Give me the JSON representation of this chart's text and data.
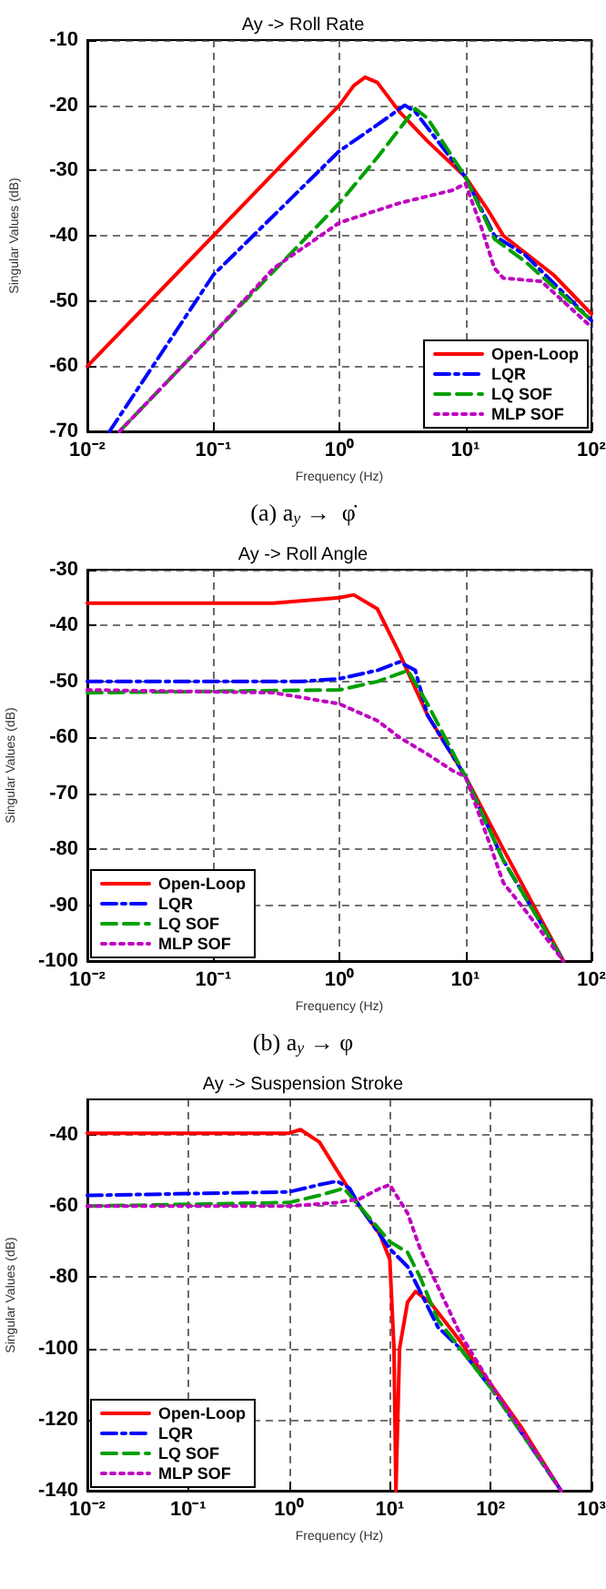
{
  "chart_data": [
    {
      "type": "line",
      "title": "Ay -> Roll Rate",
      "xlabel": "Frequency (Hz)",
      "ylabel": "Singular Values (dB)",
      "annotations": [
        "(a) a$_{y}$ →  φ̇"
      ],
      "log": "x",
      "grid": true,
      "legend": "bottom right",
      "xlim": [
        0.01,
        100
      ],
      "xticks": [
        {
          "value": 0.01,
          "label": "10⁻²"
        },
        {
          "value": 0.1,
          "label": "10⁻¹"
        },
        {
          "value": 1,
          "label": "10⁰"
        },
        {
          "value": 10,
          "label": "10¹"
        },
        {
          "value": 100,
          "label": "10²"
        }
      ],
      "ylim": [
        -70,
        -10
      ],
      "yticks": [
        -70,
        -60,
        -50,
        -40,
        -30,
        -20,
        -10
      ],
      "series": [
        {
          "name": "Open-Loop",
          "color": "#ff0000",
          "line_style": "solid",
          "x": [
            0.01,
            0.1,
            0.5,
            1,
            1.3,
            1.6,
            2,
            3,
            5,
            10,
            15,
            20,
            50,
            100
          ],
          "values": [
            -60,
            -40,
            -26,
            -20,
            -17,
            -15.7,
            -16.5,
            -21,
            -25.5,
            -31,
            -36,
            -40,
            -46,
            -52
          ]
        },
        {
          "name": "LQR",
          "color": "#0000ff",
          "line_style": "dashdot",
          "x": [
            0.015,
            0.1,
            1,
            2,
            3.3,
            4,
            10,
            17,
            30,
            100
          ],
          "values": [
            -70,
            -46,
            -27,
            -23,
            -20,
            -21,
            -31,
            -40,
            -43,
            -53
          ]
        },
        {
          "name": "LQ SOF",
          "color": "#00a000",
          "line_style": "dashed",
          "x": [
            0.018,
            0.1,
            1,
            2,
            4,
            5,
            10,
            17,
            30,
            100
          ],
          "values": [
            -70,
            -55,
            -35,
            -28,
            -20.5,
            -22,
            -31,
            -40.5,
            -44,
            -53
          ]
        },
        {
          "name": "MLP SOF",
          "color": "#c000c0",
          "line_style": "dotted",
          "x": [
            0.018,
            0.1,
            0.3,
            1,
            3,
            8,
            10,
            13,
            17,
            20,
            40,
            100
          ],
          "values": [
            -70,
            -55,
            -45,
            -38,
            -35,
            -33,
            -32,
            -38,
            -45,
            -46.5,
            -47,
            -54
          ]
        }
      ]
    },
    {
      "type": "line",
      "title": "Ay -> Roll Angle",
      "xlabel": "Frequency (Hz)",
      "ylabel": "Singular Values (dB)",
      "annotations": [
        "(b) a$_{y}$ → φ"
      ],
      "log": "x",
      "grid": true,
      "legend": "bottom left",
      "xlim": [
        0.01,
        100
      ],
      "xticks": [
        {
          "value": 0.01,
          "label": "10⁻²"
        },
        {
          "value": 0.1,
          "label": "10⁻¹"
        },
        {
          "value": 1,
          "label": "10⁰"
        },
        {
          "value": 10,
          "label": "10¹"
        },
        {
          "value": 100,
          "label": "10²"
        }
      ],
      "ylim": [
        -100,
        -30
      ],
      "yticks": [
        -100,
        -90,
        -80,
        -70,
        -60,
        -50,
        -40,
        -30
      ],
      "series": [
        {
          "name": "Open-Loop",
          "color": "#ff0000",
          "line_style": "solid",
          "x": [
            0.01,
            0.3,
            1,
            1.3,
            2,
            3,
            5,
            10,
            20,
            60
          ],
          "values": [
            -36,
            -36,
            -35,
            -34.5,
            -37,
            -45,
            -56,
            -67,
            -80,
            -100
          ]
        },
        {
          "name": "LQR",
          "color": "#0000ff",
          "line_style": "dashdot",
          "x": [
            0.01,
            0.5,
            1,
            2,
            3,
            4,
            5,
            10,
            20,
            60
          ],
          "values": [
            -50,
            -50,
            -49.5,
            -48,
            -46.5,
            -48,
            -56,
            -67,
            -82,
            -100
          ]
        },
        {
          "name": "LQ SOF",
          "color": "#00a000",
          "line_style": "dashed",
          "x": [
            0.01,
            1,
            2,
            3.5,
            5,
            10,
            20,
            60
          ],
          "values": [
            -52,
            -51.5,
            -50,
            -48,
            -54,
            -67,
            -82,
            -100
          ]
        },
        {
          "name": "MLP SOF",
          "color": "#c000c0",
          "line_style": "dotted",
          "x": [
            0.01,
            0.3,
            1,
            2,
            3,
            5,
            8,
            10,
            15,
            20,
            30,
            60
          ],
          "values": [
            -51.5,
            -52,
            -54,
            -57,
            -60,
            -63,
            -66,
            -67,
            -78,
            -86,
            -91,
            -100
          ]
        }
      ]
    },
    {
      "type": "line",
      "title": "Ay -> Suspension Stroke",
      "xlabel": "Frequency (Hz)",
      "ylabel": "Singular Values (dB)",
      "log": "x",
      "grid": true,
      "legend": "bottom left",
      "xlim": [
        0.01,
        1000
      ],
      "xticks": [
        {
          "value": 0.01,
          "label": "10⁻²"
        },
        {
          "value": 0.1,
          "label": "10⁻¹"
        },
        {
          "value": 1,
          "label": "10⁰"
        },
        {
          "value": 10,
          "label": "10¹"
        },
        {
          "value": 100,
          "label": "10²"
        },
        {
          "value": 1000,
          "label": "10³"
        }
      ],
      "ylim": [
        -140,
        -30
      ],
      "yticks": [
        -140,
        -120,
        -100,
        -80,
        -60,
        -40
      ],
      "series": [
        {
          "name": "Open-Loop",
          "color": "#ff0000",
          "line_style": "solid",
          "x": [
            0.01,
            1,
            1.3,
            2,
            3,
            5,
            8,
            10,
            11,
            11.5,
            12.5,
            15,
            18,
            25,
            50,
            100,
            200,
            500
          ],
          "values": [
            -39.5,
            -39.5,
            -38.5,
            -42,
            -50,
            -60,
            -68,
            -75,
            -100,
            -140,
            -100,
            -87,
            -84,
            -87,
            -98,
            -110,
            -122,
            -140
          ]
        },
        {
          "name": "LQR",
          "color": "#0000ff",
          "line_style": "dashdot",
          "x": [
            0.01,
            1,
            2,
            3,
            4,
            5,
            10,
            15,
            20,
            30,
            50,
            100,
            500
          ],
          "values": [
            -57,
            -56,
            -54,
            -53,
            -55,
            -60,
            -72,
            -77,
            -84,
            -94,
            -100,
            -111,
            -140
          ]
        },
        {
          "name": "LQ SOF",
          "color": "#00a000",
          "line_style": "dashed",
          "x": [
            0.01,
            1,
            2,
            3.5,
            5,
            10,
            15,
            20,
            30,
            50,
            100,
            500
          ],
          "values": [
            -60,
            -59,
            -57,
            -55,
            -60,
            -70,
            -73,
            -80,
            -92,
            -100,
            -111,
            -140
          ]
        },
        {
          "name": "MLP SOF",
          "color": "#c000c0",
          "line_style": "dotted",
          "x": [
            0.01,
            1,
            3,
            5,
            8,
            10,
            15,
            20,
            50,
            100,
            500
          ],
          "values": [
            -60,
            -60,
            -59,
            -58,
            -55,
            -54,
            -62,
            -72,
            -96,
            -110,
            -140
          ]
        }
      ]
    }
  ]
}
